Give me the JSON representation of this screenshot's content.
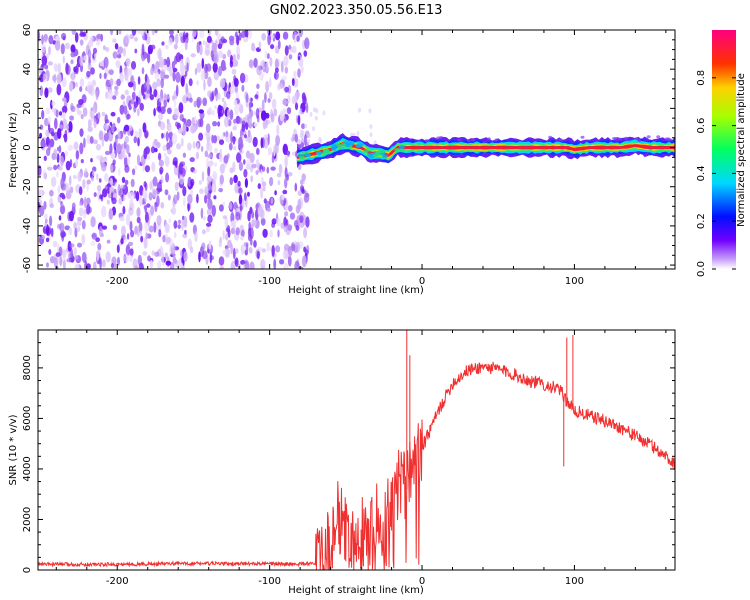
{
  "title": "GN02.2023.350.05.56.E13",
  "colors": {
    "snr_line": "#f03030",
    "frame": "#000000"
  },
  "chart_data": [
    {
      "type": "heatmap",
      "xlabel": "Height of straight line (km)",
      "ylabel": "Frequency (Hz)",
      "xlim": [
        -252,
        166
      ],
      "ylim": [
        -62,
        60
      ],
      "x_ticks": [
        -200,
        -100,
        0,
        100
      ],
      "x_tick_labels": [
        "-200",
        "-100",
        "0",
        "100"
      ],
      "y_ticks": [
        60,
        40,
        20,
        0,
        -20,
        -40,
        -60
      ],
      "y_tick_labels": [
        "60",
        "40",
        "20",
        "0",
        "-20",
        "-40",
        "-60"
      ],
      "noise_region_x": [
        -252,
        -79
      ],
      "trace": {
        "x": [
          -82,
          -70,
          -60,
          -52,
          -46,
          -40,
          -34,
          -28,
          -22,
          -16,
          0,
          20,
          40,
          60,
          80,
          95,
          100,
          110,
          120,
          130,
          140,
          150,
          166
        ],
        "freq": [
          -5,
          -3,
          -1,
          2,
          1,
          0,
          -3,
          -3,
          -4,
          0,
          0,
          0,
          0,
          0,
          0,
          0,
          -1,
          0,
          0,
          0,
          1,
          0,
          0
        ]
      },
      "colorbar": {
        "label": "Normalized spectral amplitude",
        "range": [
          0,
          1
        ],
        "ticks": [
          0.0,
          0.2,
          0.4,
          0.6,
          0.8
        ],
        "tick_labels": [
          "0.0",
          "0.2",
          "0.4",
          "0.6",
          "0.8"
        ]
      }
    },
    {
      "type": "line",
      "xlabel": "Height of straight line (km)",
      "ylabel": "SNR (10 * v/v)",
      "xlim": [
        -252,
        166
      ],
      "ylim": [
        0,
        9500
      ],
      "x_ticks": [
        -200,
        -100,
        0,
        100
      ],
      "x_tick_labels": [
        "-200",
        "-100",
        "0",
        "100"
      ],
      "y_ticks": [
        0,
        2000,
        4000,
        6000,
        8000
      ],
      "y_tick_labels": [
        "0",
        "2000",
        "4000",
        "6000",
        "8000"
      ],
      "series": [
        {
          "name": "SNR",
          "x": [
            -252,
            -200,
            -150,
            -100,
            -80,
            -65,
            -60,
            -55,
            -50,
            -45,
            -40,
            -35,
            -30,
            -25,
            -20,
            -15,
            -10,
            -5,
            0,
            10,
            20,
            30,
            40,
            50,
            60,
            70,
            80,
            90,
            95,
            100,
            110,
            120,
            130,
            140,
            150,
            160,
            166
          ],
          "y": [
            230,
            220,
            260,
            240,
            240,
            300,
            1200,
            2200,
            1500,
            800,
            1600,
            900,
            2400,
            1800,
            2800,
            3600,
            3200,
            4200,
            4800,
            6200,
            7400,
            7900,
            8050,
            7950,
            7750,
            7500,
            7350,
            7150,
            6700,
            6300,
            6100,
            5900,
            5650,
            5300,
            4950,
            4500,
            4200
          ]
        }
      ],
      "spikes": [
        {
          "x": -10,
          "y": 9500
        },
        {
          "x": -8,
          "y": 8500
        },
        {
          "x": 95,
          "y": 9200
        },
        {
          "x": 99,
          "y": 9300
        },
        {
          "x": 93,
          "y": 4100
        },
        {
          "x": -40,
          "y": 300
        }
      ]
    }
  ]
}
